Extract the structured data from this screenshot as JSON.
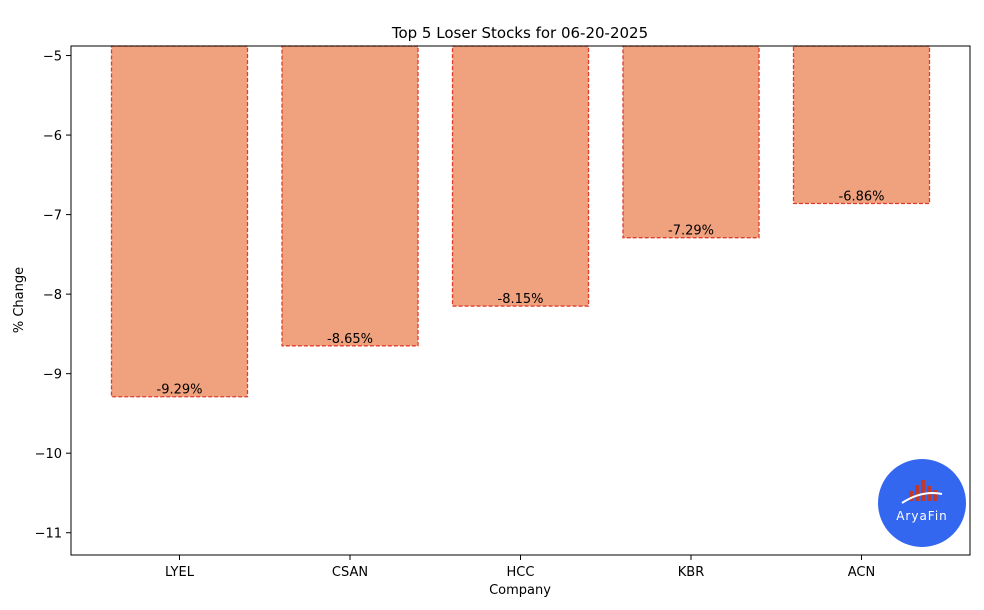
{
  "chart_data": {
    "type": "bar",
    "title": "Top 5 Loser Stocks for 06-20-2025",
    "xlabel": "Company",
    "ylabel": "% Change",
    "categories": [
      "LYEL",
      "CSAN",
      "HCC",
      "KBR",
      "ACN"
    ],
    "values": [
      -9.29,
      -8.65,
      -8.15,
      -7.29,
      -6.86
    ],
    "value_labels": [
      "-9.29%",
      "-8.65%",
      "-8.15%",
      "-7.29%",
      "-6.86%"
    ],
    "ylim": [
      -11.28,
      -4.88
    ],
    "yticks": [
      -5,
      -6,
      -7,
      -8,
      -9,
      -10,
      -11
    ],
    "ytick_labels": [
      "−5",
      "−6",
      "−7",
      "−8",
      "−9",
      "−10",
      "−11"
    ],
    "grid": false,
    "bar_color": "#f0a17e",
    "bar_edge_color": "#e03c2c"
  },
  "watermark": {
    "logo_text": "AryaFin",
    "logo_color": "#3467f0"
  }
}
